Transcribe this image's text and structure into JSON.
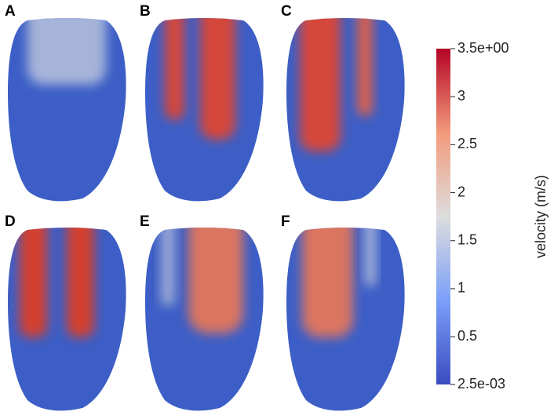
{
  "panels": [
    "A",
    "B",
    "C",
    "D",
    "E",
    "F"
  ],
  "colorbar": {
    "title": "velocity (m/s)",
    "lim": [
      0.0025,
      3.5
    ],
    "ticks": [
      {
        "value": 3.5,
        "label": "3.5e+00"
      },
      3,
      2.5,
      2,
      1.5,
      1,
      0.5,
      {
        "value": 0.0025,
        "label": "2.5e-03"
      }
    ]
  }
}
